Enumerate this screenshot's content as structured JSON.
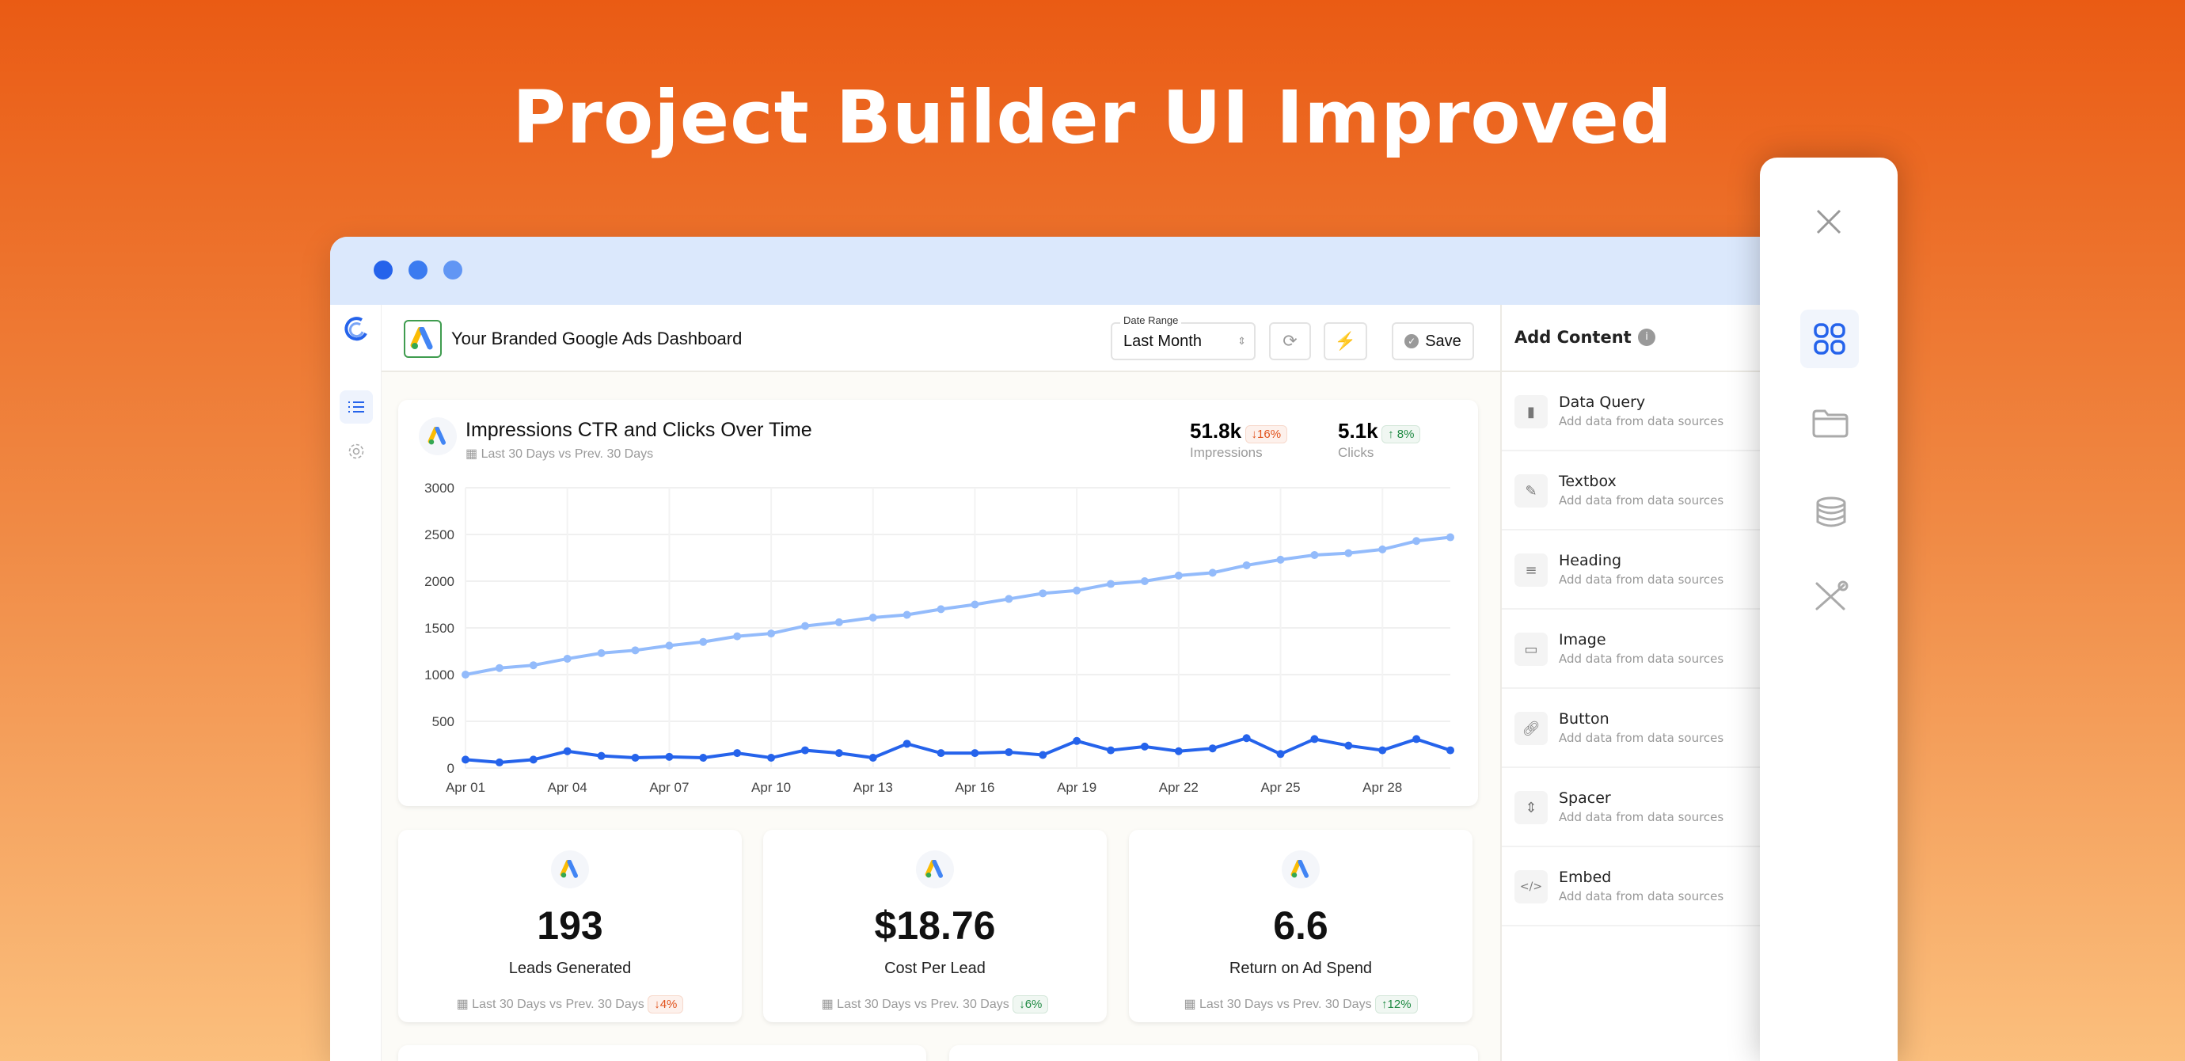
{
  "hero_title": "Project Builder UI Improved",
  "header": {
    "title": "Your Branded Google Ads Dashboard",
    "date_range_label": "Date Range",
    "date_range_value": "Last Month",
    "save_label": "Save"
  },
  "chart_card": {
    "title": "Impressions CTR and Clicks Over Time",
    "subtitle": "Last 30 Days vs Prev. 30 Days",
    "stats": [
      {
        "value": "51.8k",
        "change": "↓16%",
        "label": "Impressions",
        "direction": "down"
      },
      {
        "value": "5.1k",
        "change": "↑ 8%",
        "label": "Clicks",
        "direction": "up"
      }
    ]
  },
  "chart_data": {
    "type": "line",
    "title": "Impressions CTR and Clicks Over Time",
    "ylim": [
      0,
      3000
    ],
    "yticks": [
      "0",
      "500",
      "1000",
      "1500",
      "2000",
      "2500",
      "3000"
    ],
    "x": [
      "Apr 01",
      "Apr 02",
      "Apr 03",
      "Apr 04",
      "Apr 05",
      "Apr 06",
      "Apr 07",
      "Apr 08",
      "Apr 09",
      "Apr 10",
      "Apr 11",
      "Apr 12",
      "Apr 13",
      "Apr 14",
      "Apr 15",
      "Apr 16",
      "Apr 17",
      "Apr 18",
      "Apr 19",
      "Apr 20",
      "Apr 21",
      "Apr 22",
      "Apr 23",
      "Apr 24",
      "Apr 25",
      "Apr 26",
      "Apr 27",
      "Apr 28",
      "Apr 29",
      "Apr 30"
    ],
    "xtick_labels": [
      "Apr 01",
      "Apr 04",
      "Apr 07",
      "Apr 10",
      "Apr 13",
      "Apr 16",
      "Apr 19",
      "Apr 22",
      "Apr 25",
      "Apr 28"
    ],
    "grid": true,
    "series": [
      {
        "color": "#93bbfb",
        "values": [
          1000,
          1070,
          1100,
          1170,
          1230,
          1260,
          1310,
          1350,
          1410,
          1440,
          1520,
          1560,
          1610,
          1640,
          1700,
          1750,
          1810,
          1870,
          1900,
          1970,
          2000,
          2060,
          2090,
          2170,
          2230,
          2280,
          2300,
          2340,
          2430,
          2470
        ]
      },
      {
        "color": "#2563eb",
        "values": [
          90,
          60,
          90,
          180,
          130,
          110,
          120,
          110,
          160,
          110,
          190,
          160,
          110,
          260,
          160,
          160,
          170,
          140,
          290,
          190,
          230,
          180,
          210,
          320,
          150,
          310,
          240,
          190,
          310,
          190
        ]
      }
    ]
  },
  "kpis": [
    {
      "value": "193",
      "label": "Leads Generated",
      "period": "Last 30 Days vs Prev. 30 Days",
      "change": "↓4%",
      "direction": "down"
    },
    {
      "value": "$18.76",
      "label": "Cost Per Lead",
      "period": "Last 30 Days vs Prev. 30 Days",
      "change": "↓6%",
      "direction": "up"
    },
    {
      "value": "6.6",
      "label": "Return on Ad Spend",
      "period": "Last 30 Days vs Prev. 30 Days",
      "change": "↑12%",
      "direction": "up"
    }
  ],
  "add_content": {
    "title": "Add Content",
    "items": [
      {
        "label": "Data Query",
        "desc": "Add data from data sources",
        "icon": "bar-chart-icon"
      },
      {
        "label": "Textbox",
        "desc": "Add data from data sources",
        "icon": "edit-icon"
      },
      {
        "label": "Heading",
        "desc": "Add data from data sources",
        "icon": "heading-icon"
      },
      {
        "label": "Image",
        "desc": "Add data from data sources",
        "icon": "image-icon"
      },
      {
        "label": "Button",
        "desc": "Add data from data sources",
        "icon": "link-icon"
      },
      {
        "label": "Spacer",
        "desc": "Add data from data sources",
        "icon": "spacer-icon"
      },
      {
        "label": "Embed",
        "desc": "Add data from data sources",
        "icon": "code-icon"
      }
    ]
  },
  "colors": {
    "accent": "#2563eb",
    "down": "#e1521c",
    "up": "#1f8a43"
  }
}
